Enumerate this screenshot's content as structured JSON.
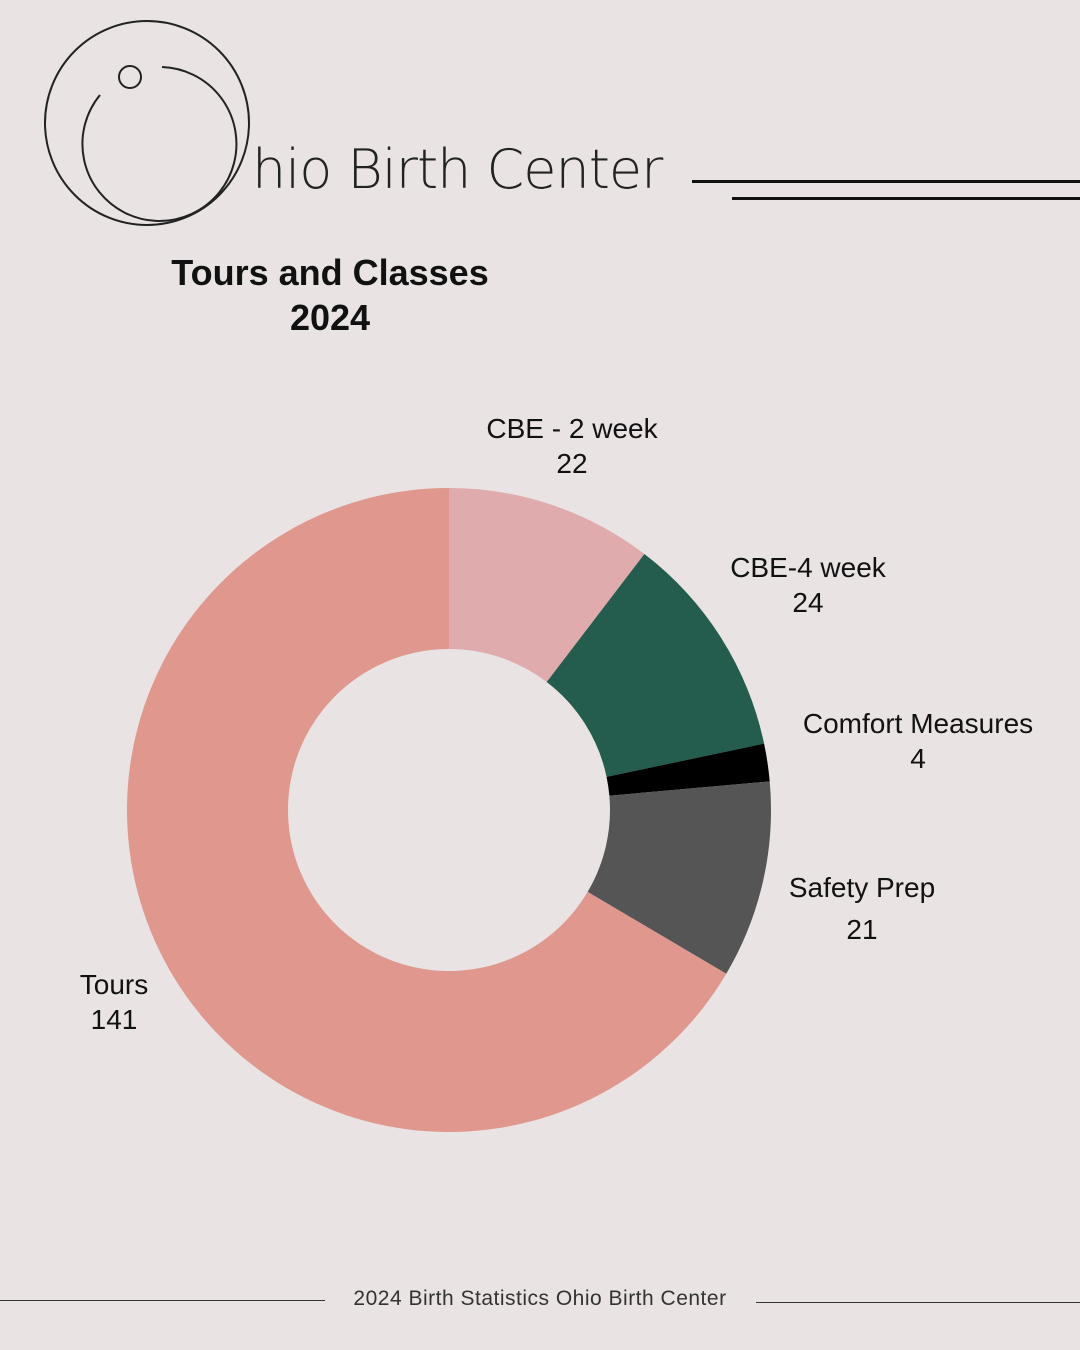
{
  "brand": {
    "name": "hio Birth Center",
    "logo_text": "Ohio Birth Center"
  },
  "chart_data": {
    "type": "donut",
    "title_line1": "Tours and Classes",
    "title_line2": "2024",
    "slices": [
      {
        "name": "CBE - 2 week",
        "value": 22,
        "color": "#dfabad"
      },
      {
        "name": "CBE-4 week",
        "value": 24,
        "color": "#245c4d"
      },
      {
        "name": "Comfort Measures",
        "value": 4,
        "color": "#000000"
      },
      {
        "name": "Safety Prep",
        "value": 21,
        "color": "#555555"
      },
      {
        "name": "Tours",
        "value": 141,
        "color": "#df978e"
      }
    ],
    "background": "#e9e3e3"
  },
  "footer": {
    "text": "2024 Birth Statistics Ohio Birth Center"
  }
}
